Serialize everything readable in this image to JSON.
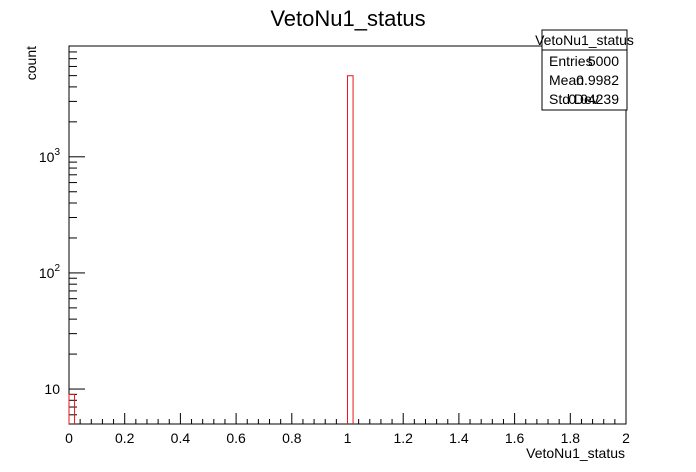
{
  "chart_data": {
    "type": "bar",
    "title": "VetoNu1_status",
    "xlabel": "VetoNu1_status",
    "ylabel": "count",
    "xlim": [
      0,
      2
    ],
    "ylim": [
      5,
      9000
    ],
    "yscale": "log",
    "x_ticks": [
      "0",
      "0.2",
      "0.4",
      "0.6",
      "0.8",
      "1",
      "1.2",
      "1.4",
      "1.6",
      "1.8",
      "2"
    ],
    "y_ticks": [
      {
        "base": "10",
        "exp": "",
        "value": 10
      },
      {
        "base": "10",
        "exp": "2",
        "value": 100
      },
      {
        "base": "10",
        "exp": "3",
        "value": 1000
      }
    ],
    "bins": [
      {
        "x_low": 0.0,
        "x_high": 0.02,
        "count": 9
      },
      {
        "x_low": 1.0,
        "x_high": 1.02,
        "count": 4991
      }
    ],
    "line_color": "#e8151a",
    "grid": false,
    "legend": "top-right"
  },
  "stats_box": {
    "title": "VetoNu1_status",
    "rows": [
      {
        "label": "Entries",
        "value": "5000"
      },
      {
        "label": "Mean",
        "value": "0.9982"
      },
      {
        "label": "Std Dev",
        "value": "0.04239"
      }
    ]
  }
}
